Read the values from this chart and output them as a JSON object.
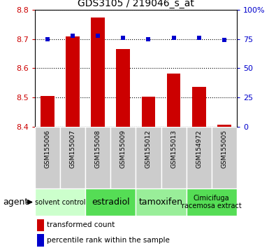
{
  "title": "GDS3105 / 219046_s_at",
  "samples": [
    "GSM155006",
    "GSM155007",
    "GSM155008",
    "GSM155009",
    "GSM155012",
    "GSM155013",
    "GSM154972",
    "GSM155005"
  ],
  "bar_values": [
    8.505,
    8.71,
    8.775,
    8.665,
    8.502,
    8.582,
    8.535,
    8.405
  ],
  "percentile_values": [
    75,
    78,
    78,
    76,
    75,
    76,
    76,
    74
  ],
  "bar_bottom": 8.4,
  "ylim_left": [
    8.4,
    8.8
  ],
  "ylim_right": [
    0,
    100
  ],
  "yticks_left": [
    8.4,
    8.5,
    8.6,
    8.7,
    8.8
  ],
  "yticks_right": [
    0,
    25,
    50,
    75,
    100
  ],
  "ytick_labels_right": [
    "0",
    "25",
    "50",
    "75",
    "100%"
  ],
  "bar_color": "#cc0000",
  "percentile_color": "#0000cc",
  "grid_color": "#000000",
  "agent_groups": [
    {
      "label": "solvent control",
      "start": 0,
      "end": 2,
      "color": "#ccffcc",
      "fontsize": 7
    },
    {
      "label": "estradiol",
      "start": 2,
      "end": 4,
      "color": "#55dd55",
      "fontsize": 9
    },
    {
      "label": "tamoxifen",
      "start": 4,
      "end": 6,
      "color": "#99ee99",
      "fontsize": 9
    },
    {
      "label": "Cimicifuga\nracemosa extract",
      "start": 6,
      "end": 8,
      "color": "#55dd55",
      "fontsize": 7
    }
  ],
  "sample_bg_color": "#cccccc",
  "legend_bar_label": "transformed count",
  "legend_pct_label": "percentile rank within the sample",
  "agent_label": "agent",
  "bar_width": 0.55,
  "left_tick_color": "#cc0000",
  "right_tick_color": "#0000cc",
  "n_samples": 8
}
